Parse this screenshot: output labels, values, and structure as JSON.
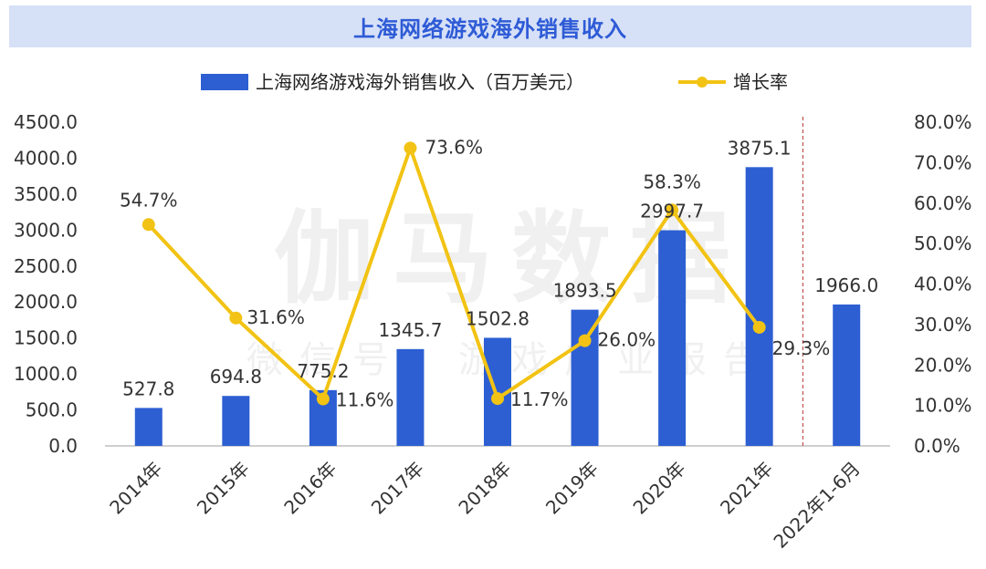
{
  "title": "上海网络游戏海外销售收入",
  "watermark": {
    "main": "伽马数据",
    "sub": "微信号：游戏产业报告"
  },
  "colors": {
    "bar": "#2d5fd3",
    "line": "#f2c314",
    "title_bg": "#d6e0f7",
    "title_text": "#2e5bd6",
    "axis": "#bfbfbf",
    "divider": "#c0504d"
  },
  "chart_data": {
    "type": "bar",
    "categories": [
      "2014年",
      "2015年",
      "2016年",
      "2017年",
      "2018年",
      "2019年",
      "2020年",
      "2021年",
      "2022年1-6月"
    ],
    "series": [
      {
        "name": "上海网络游戏海外销售收入（百万美元）",
        "type": "bar",
        "axis": "left",
        "values": [
          527.8,
          694.8,
          775.2,
          1345.7,
          1502.8,
          1893.5,
          2997.7,
          3875.1,
          1966.0
        ],
        "labels": [
          "527.8",
          "694.8",
          "775.2",
          "1345.7",
          "1502.8",
          "1893.5",
          "2997.7",
          "3875.1",
          "1966.0"
        ]
      },
      {
        "name": "增长率",
        "type": "line",
        "axis": "right",
        "values": [
          54.7,
          31.6,
          11.6,
          73.6,
          11.7,
          26.0,
          58.3,
          29.3,
          null
        ],
        "labels": [
          "54.7%",
          "31.6%",
          "11.6%",
          "73.6%",
          "11.7%",
          "26.0%",
          "58.3%",
          "29.3%",
          ""
        ]
      }
    ],
    "y_left": {
      "min": 0,
      "max": 4500,
      "ticks": [
        "0.0",
        "500.0",
        "1000.0",
        "1500.0",
        "2000.0",
        "2500.0",
        "3000.0",
        "3500.0",
        "4000.0",
        "4500.0"
      ]
    },
    "y_right": {
      "min": 0,
      "max": 80,
      "ticks": [
        "0.0%",
        "10.0%",
        "20.0%",
        "30.0%",
        "40.0%",
        "50.0%",
        "60.0%",
        "70.0%",
        "80.0%"
      ]
    },
    "legend": "top-center",
    "grid": false,
    "divider_after_category": "2021年"
  }
}
